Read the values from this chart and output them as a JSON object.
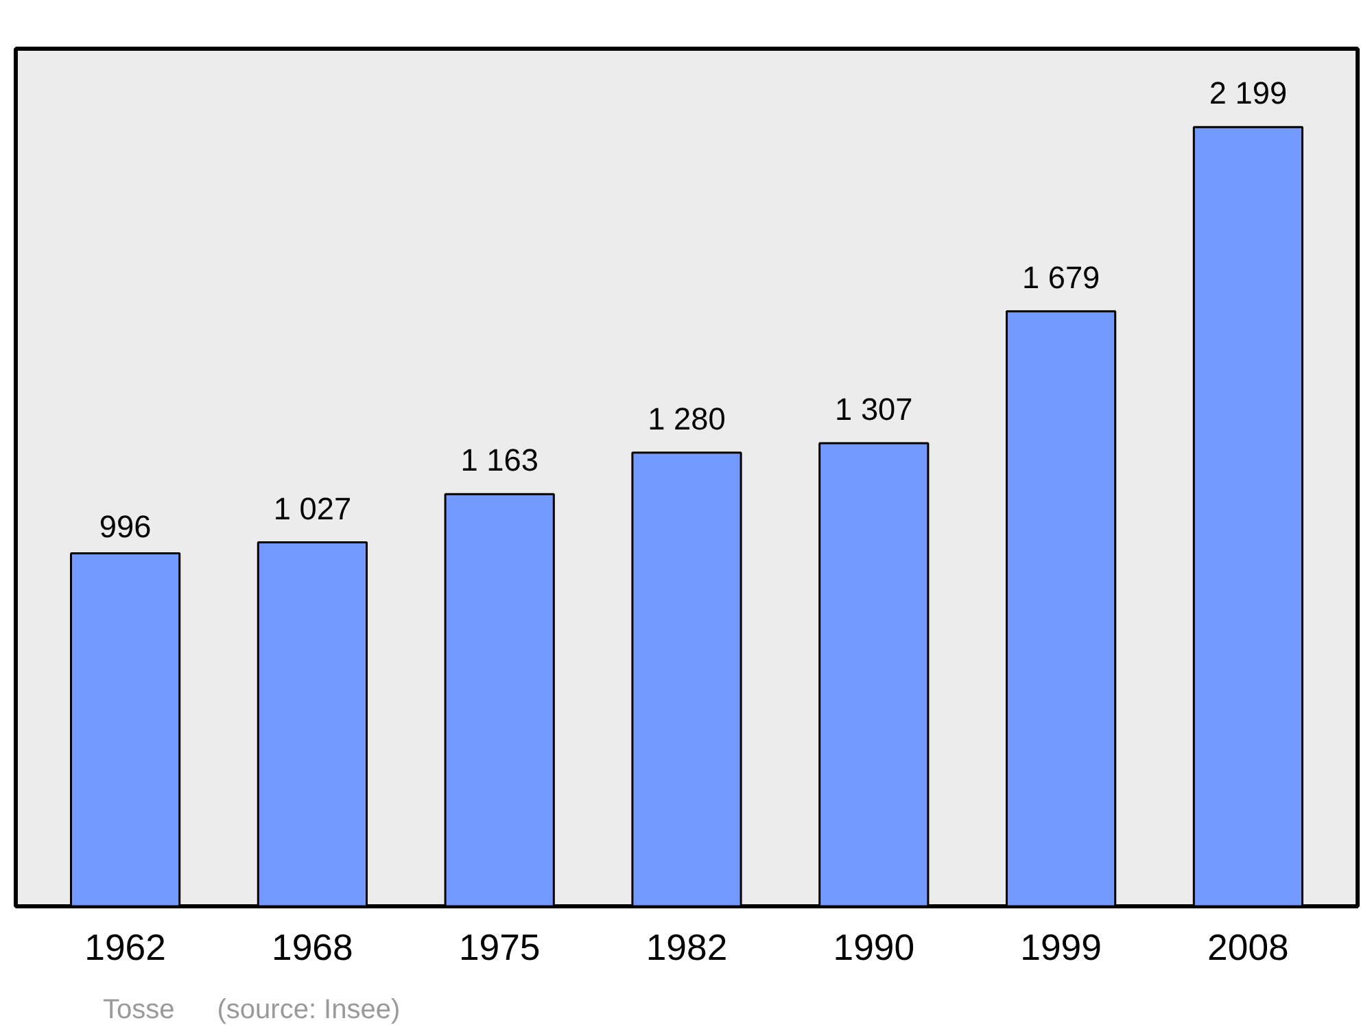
{
  "chart_data": {
    "type": "bar",
    "categories": [
      "1962",
      "1968",
      "1975",
      "1982",
      "1990",
      "1999",
      "2008"
    ],
    "values": [
      996,
      1027,
      1163,
      1280,
      1307,
      1679,
      2199
    ],
    "value_labels": [
      "996",
      "1 027",
      "1 163",
      "1 280",
      "1 307",
      "1 679",
      "2 199"
    ],
    "color": "#7499ff",
    "ylim": [
      0,
      2420
    ],
    "grid": false,
    "annotations": [
      "Tosse",
      "(source: Insee)"
    ]
  }
}
